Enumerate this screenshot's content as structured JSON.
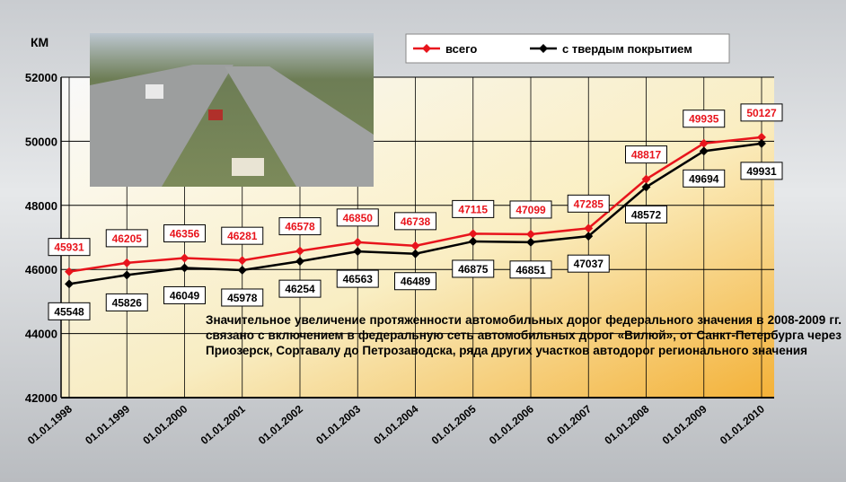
{
  "chart_data": {
    "type": "line",
    "y_label": "КМ",
    "categories": [
      "01.01.1998",
      "01.01.1999",
      "01.01.2000",
      "01.01.2001",
      "01.01.2002",
      "01.01.2003",
      "01.01.2004",
      "01.01.2005",
      "01.01.2006",
      "01.01.2007",
      "01.01.2008",
      "01.01.2009",
      "01.01.2010"
    ],
    "series": [
      {
        "name": "всего",
        "color": "#e8141c",
        "values": [
          45931,
          46205,
          46356,
          46281,
          46578,
          46850,
          46738,
          47115,
          47099,
          47285,
          48817,
          49935,
          50127
        ]
      },
      {
        "name": "с твердым покрытием",
        "color": "#000000",
        "values": [
          45548,
          45826,
          46049,
          45978,
          46254,
          46563,
          46489,
          46875,
          46851,
          47037,
          48572,
          49694,
          49931
        ]
      }
    ],
    "ylim": [
      42000,
      52000
    ],
    "yticks": [
      42000,
      44000,
      46000,
      48000,
      50000,
      52000
    ],
    "grid": true,
    "legend": "top-right",
    "annotation": "Значительное увеличение протяженности автомобильных дорог федерального значения в 2008-2009 гг. связано с включением в федеральную сеть автомобильных дорог «Вилюй», от Санкт-Петербурга через Приозерск, Сортавалу до Петрозаводска, ряда других участков автодорог регионального значения"
  }
}
